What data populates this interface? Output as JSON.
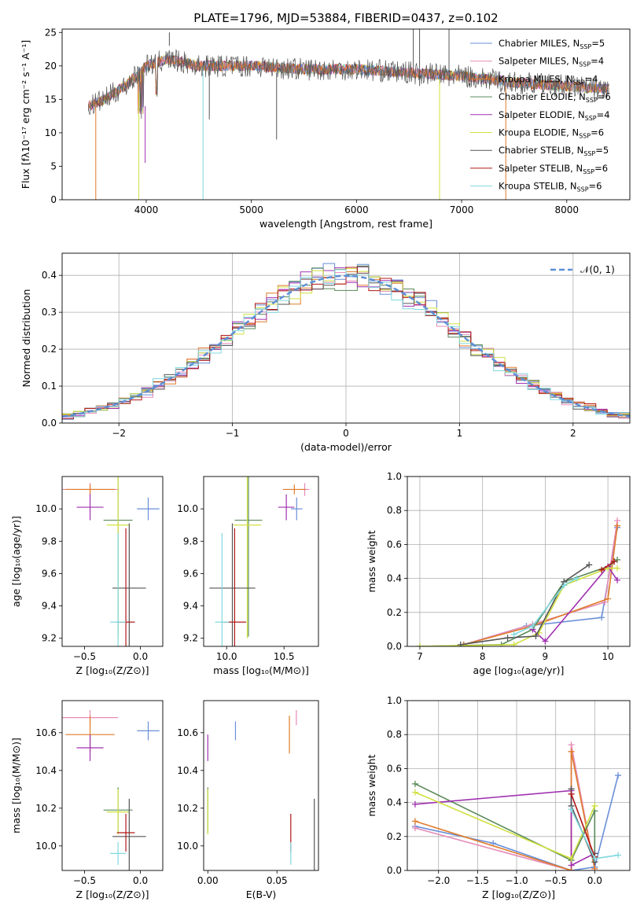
{
  "chart_data": [
    {
      "type": "line",
      "title": "PLATE=1796, MJD=53884, FIBERID=0437, z=0.102",
      "xlabel": "wavelength [Angstrom, rest frame]",
      "ylabel": "Flux [fλ10⁻¹⁷ erg cm⁻² s⁻¹ A⁻¹]",
      "xlim": [
        3200,
        8600
      ],
      "ylim": [
        0,
        25.5
      ],
      "xticks": [
        "4000",
        "5000",
        "6000",
        "7000",
        "8000"
      ],
      "yticks": [
        "0",
        "5",
        "10",
        "15",
        "20",
        "25"
      ],
      "legend_position": "top-right",
      "legend": [
        {
          "main": "Chabrier MILES, N",
          "sub": "SSP",
          "tail": "=5",
          "color": "#6a8fd8"
        },
        {
          "main": "Salpeter MILES, N",
          "sub": "SSP",
          "tail": "=4",
          "color": "#e58bb8"
        },
        {
          "main": "Kroupa MILES, N",
          "sub": "SSP",
          "tail": "=4",
          "color": "#e07b2a"
        },
        {
          "main": "Chabrier ELODIE, N",
          "sub": "SSP",
          "tail": "=6",
          "color": "#5a8a5a"
        },
        {
          "main": "Salpeter ELODIE, N",
          "sub": "SSP",
          "tail": "=4",
          "color": "#a030b0"
        },
        {
          "main": "Kroupa ELODIE, N",
          "sub": "SSP",
          "tail": "=6",
          "color": "#d0e040"
        },
        {
          "main": "Chabrier STELIB, N",
          "sub": "SSP",
          "tail": "=5",
          "color": "#555555"
        },
        {
          "main": "Salpeter STELIB, N",
          "sub": "SSP",
          "tail": "=6",
          "color": "#b01818"
        },
        {
          "main": "Kroupa STELIB, N",
          "sub": "SSP",
          "tail": "=6",
          "color": "#80d8e0"
        }
      ],
      "spectrum_envelope": {
        "wavelength": [
          3450,
          3600,
          3800,
          4000,
          4200,
          4500,
          5000,
          5500,
          6000,
          6500,
          7000,
          7500,
          8000,
          8400
        ],
        "flux": [
          14,
          15,
          17,
          20,
          21,
          20,
          20,
          19.5,
          19.5,
          19,
          18.5,
          17.5,
          17,
          16.5
        ]
      }
    },
    {
      "type": "step",
      "xlabel": "(data-model)/error",
      "ylabel": "Normed distribution",
      "xlim": [
        -2.5,
        2.5
      ],
      "ylim": [
        0,
        0.46
      ],
      "xticks": [
        "−2",
        "−1",
        "0",
        "1",
        "2"
      ],
      "yticks": [
        "0.0",
        "0.1",
        "0.2",
        "0.3",
        "0.4"
      ],
      "grid": true,
      "legend_position": "top-right",
      "legend": [
        {
          "label": "𝒩(0, 1)",
          "color": "#5b8fd6",
          "style": "dashed"
        }
      ],
      "histogram_density_approx": {
        "x": [
          -2.4,
          -2.2,
          -2.0,
          -1.8,
          -1.6,
          -1.4,
          -1.2,
          -1.0,
          -0.8,
          -0.6,
          -0.4,
          -0.2,
          0.0,
          0.2,
          0.4,
          0.6,
          0.8,
          1.0,
          1.2,
          1.4,
          1.6,
          1.8,
          2.0,
          2.2,
          2.4
        ],
        "density": [
          0.03,
          0.04,
          0.055,
          0.08,
          0.11,
          0.15,
          0.19,
          0.24,
          0.29,
          0.33,
          0.37,
          0.39,
          0.4,
          0.39,
          0.37,
          0.33,
          0.29,
          0.24,
          0.19,
          0.15,
          0.11,
          0.08,
          0.055,
          0.04,
          0.03
        ]
      }
    },
    {
      "type": "scatter",
      "xlabel": "Z [log₁₀(Z/Z⊙)]",
      "ylabel": "age  [log₁₀(age/yr)]",
      "xlim": [
        -0.7,
        0.2
      ],
      "ylim": [
        9.15,
        10.2
      ],
      "xticks": [
        "−0.5",
        "0.0"
      ],
      "yticks": [
        "9.2",
        "9.4",
        "9.6",
        "9.8",
        "10.0"
      ],
      "points": [
        {
          "x": 0.07,
          "y": 10.0,
          "xerr": 0.1,
          "yerr": 0.07,
          "color": "#6a8fd8"
        },
        {
          "x": -0.45,
          "y": 10.12,
          "xerr": 0.25,
          "yerr": 0.04,
          "color": "#e58bb8"
        },
        {
          "x": -0.45,
          "y": 10.12,
          "xerr": 0.22,
          "yerr": 0.03,
          "color": "#e07b2a"
        },
        {
          "x": -0.2,
          "y": 9.93,
          "xerr": 0.13,
          "yerr": 0.72,
          "color": "#5a8a5a"
        },
        {
          "x": -0.45,
          "y": 10.01,
          "xerr": 0.12,
          "yerr": 0.08,
          "color": "#a030b0"
        },
        {
          "x": -0.2,
          "y": 9.9,
          "xerr": 0.1,
          "yerr": 0.7,
          "color": "#d0e040"
        },
        {
          "x": -0.1,
          "y": 9.51,
          "xerr": 0.15,
          "yerr": 0.4,
          "color": "#555555"
        },
        {
          "x": -0.13,
          "y": 9.3,
          "xerr": 0.08,
          "yerr": 0.58,
          "color": "#b01818"
        },
        {
          "x": -0.2,
          "y": 9.3,
          "xerr": 0.07,
          "yerr": 0.55,
          "color": "#80d8e0"
        }
      ]
    },
    {
      "type": "scatter",
      "xlabel": "mass [log₁₀(M/M⊙)]",
      "ylabel": "",
      "xlim": [
        9.8,
        10.8
      ],
      "ylim": [
        9.15,
        10.2
      ],
      "xticks": [
        "10.0",
        "10.5"
      ],
      "yticks": [
        "9.2",
        "9.4",
        "9.6",
        "9.8",
        "10.0"
      ],
      "points": [
        {
          "x": 10.61,
          "y": 10.0,
          "xerr": 0.05,
          "yerr": 0.07,
          "color": "#6a8fd8"
        },
        {
          "x": 10.68,
          "y": 10.12,
          "xerr": 0.04,
          "yerr": 0.04,
          "color": "#e58bb8"
        },
        {
          "x": 10.59,
          "y": 10.12,
          "xerr": 0.1,
          "yerr": 0.03,
          "color": "#e07b2a"
        },
        {
          "x": 10.19,
          "y": 9.93,
          "xerr": 0.12,
          "yerr": 0.72,
          "color": "#5a8a5a"
        },
        {
          "x": 10.52,
          "y": 10.01,
          "xerr": 0.07,
          "yerr": 0.08,
          "color": "#a030b0"
        },
        {
          "x": 10.18,
          "y": 9.9,
          "xerr": 0.12,
          "yerr": 0.7,
          "color": "#d0e040"
        },
        {
          "x": 10.05,
          "y": 9.51,
          "xerr": 0.2,
          "yerr": 0.4,
          "color": "#555555"
        },
        {
          "x": 10.07,
          "y": 9.3,
          "xerr": 0.1,
          "yerr": 0.58,
          "color": "#b01818"
        },
        {
          "x": 9.96,
          "y": 9.3,
          "xerr": 0.06,
          "yerr": 0.55,
          "color": "#80d8e0"
        }
      ]
    },
    {
      "type": "line",
      "xlabel": "age  [log₁₀(age/yr)]",
      "ylabel": "mass weight",
      "xlim": [
        6.8,
        10.35
      ],
      "ylim": [
        0,
        1.0
      ],
      "xticks": [
        "7",
        "8",
        "9",
        "10"
      ],
      "yticks": [
        "0.0",
        "0.2",
        "0.4",
        "0.6",
        "0.8",
        "1.0"
      ],
      "grid": true,
      "series": [
        {
          "color": "#6a8fd8",
          "x": [
            7.7,
            8.7,
            9.9,
            10.15
          ],
          "y": [
            0.01,
            0.12,
            0.17,
            0.7
          ]
        },
        {
          "color": "#e58bb8",
          "x": [
            7.7,
            8.8,
            9.95,
            10.15
          ],
          "y": [
            0.01,
            0.13,
            0.26,
            0.74
          ]
        },
        {
          "color": "#e07b2a",
          "x": [
            7.7,
            8.8,
            10.0,
            10.15
          ],
          "y": [
            0.01,
            0.12,
            0.28,
            0.71
          ]
        },
        {
          "color": "#5a8a5a",
          "x": [
            7.0,
            8.3,
            8.8,
            9.3,
            10.0,
            10.15
          ],
          "y": [
            0.0,
            0.01,
            0.1,
            0.38,
            0.47,
            0.51
          ]
        },
        {
          "color": "#a030b0",
          "x": [
            8.8,
            9.0,
            10.0,
            10.15
          ],
          "y": [
            0.1,
            0.03,
            0.47,
            0.39
          ]
        },
        {
          "color": "#d0e040",
          "x": [
            7.0,
            8.5,
            8.9,
            9.3,
            10.0,
            10.15
          ],
          "y": [
            0.0,
            0.01,
            0.08,
            0.36,
            0.46,
            0.46
          ]
        },
        {
          "color": "#555555",
          "x": [
            7.65,
            8.4,
            8.85,
            9.3,
            9.7
          ],
          "y": [
            0.01,
            0.05,
            0.06,
            0.38,
            0.48
          ]
        },
        {
          "color": "#b01818",
          "x": [
            9.9,
            10.1
          ],
          "y": [
            0.45,
            0.5
          ]
        },
        {
          "color": "#80d8e0",
          "x": [
            8.5,
            8.8,
            9.3,
            9.5
          ],
          "y": [
            0.07,
            0.12,
            0.36,
            0.4
          ]
        }
      ]
    },
    {
      "type": "scatter",
      "xlabel": "Z [log₁₀(Z/Z⊙)]",
      "ylabel": "mass [log₁₀(M/M⊙)]",
      "xlim": [
        -0.7,
        0.2
      ],
      "ylim": [
        9.87,
        10.77
      ],
      "xticks": [
        "−0.5",
        "0.0"
      ],
      "yticks": [
        "10.0",
        "10.2",
        "10.4",
        "10.6"
      ],
      "points": [
        {
          "x": 0.07,
          "y": 10.61,
          "xerr": 0.1,
          "yerr": 0.05,
          "color": "#6a8fd8"
        },
        {
          "x": -0.45,
          "y": 10.68,
          "xerr": 0.25,
          "yerr": 0.04,
          "color": "#e58bb8"
        },
        {
          "x": -0.45,
          "y": 10.59,
          "xerr": 0.22,
          "yerr": 0.1,
          "color": "#e07b2a"
        },
        {
          "x": -0.2,
          "y": 10.19,
          "xerr": 0.13,
          "yerr": 0.12,
          "color": "#5a8a5a"
        },
        {
          "x": -0.45,
          "y": 10.52,
          "xerr": 0.12,
          "yerr": 0.07,
          "color": "#a030b0"
        },
        {
          "x": -0.2,
          "y": 10.18,
          "xerr": 0.1,
          "yerr": 0.12,
          "color": "#d0e040"
        },
        {
          "x": -0.1,
          "y": 10.05,
          "xerr": 0.15,
          "yerr": 0.2,
          "color": "#555555"
        },
        {
          "x": -0.13,
          "y": 10.07,
          "xerr": 0.08,
          "yerr": 0.1,
          "color": "#b01818"
        },
        {
          "x": -0.2,
          "y": 9.96,
          "xerr": 0.07,
          "yerr": 0.06,
          "color": "#80d8e0"
        }
      ]
    },
    {
      "type": "scatter",
      "xlabel": "E(B-V)",
      "ylabel": "",
      "xlim": [
        -0.003,
        0.08
      ],
      "ylim": [
        9.87,
        10.77
      ],
      "xticks": [
        "0.00",
        "0.05"
      ],
      "yticks": [
        "10.0",
        "10.2",
        "10.4",
        "10.6"
      ],
      "points": [
        {
          "x": 0.02,
          "y": 10.61,
          "xerr": 0,
          "yerr": 0.05,
          "color": "#6a8fd8"
        },
        {
          "x": 0.064,
          "y": 10.68,
          "xerr": 0,
          "yerr": 0.04,
          "color": "#e58bb8"
        },
        {
          "x": 0.059,
          "y": 10.59,
          "xerr": 0,
          "yerr": 0.1,
          "color": "#e07b2a"
        },
        {
          "x": 0.0,
          "y": 10.19,
          "xerr": 0,
          "yerr": 0.12,
          "color": "#5a8a5a"
        },
        {
          "x": 0.0,
          "y": 10.52,
          "xerr": 0,
          "yerr": 0.07,
          "color": "#a030b0"
        },
        {
          "x": 0.0,
          "y": 10.18,
          "xerr": 0,
          "yerr": 0.12,
          "color": "#d0e040"
        },
        {
          "x": 0.077,
          "y": 10.05,
          "xerr": 0,
          "yerr": 0.2,
          "color": "#555555"
        },
        {
          "x": 0.06,
          "y": 10.07,
          "xerr": 0,
          "yerr": 0.1,
          "color": "#b01818"
        },
        {
          "x": 0.06,
          "y": 9.96,
          "xerr": 0,
          "yerr": 0.06,
          "color": "#80d8e0"
        }
      ]
    },
    {
      "type": "line",
      "xlabel": "Z [log₁₀(Z/Z⊙)]",
      "ylabel": "mass weight",
      "xlim": [
        -2.4,
        0.45
      ],
      "ylim": [
        0,
        1.0
      ],
      "xticks": [
        "−2.0",
        "−1.5",
        "−1.0",
        "−0.5",
        "0.0"
      ],
      "yticks": [
        "0.0",
        "0.2",
        "0.4",
        "0.6",
        "0.8",
        "1.0"
      ],
      "grid": true,
      "series": [
        {
          "color": "#6a8fd8",
          "x": [
            -2.3,
            -1.3,
            -0.3,
            0.0,
            0.3
          ],
          "y": [
            0.26,
            0.16,
            0.0,
            0.02,
            0.56
          ]
        },
        {
          "color": "#e58bb8",
          "x": [
            -2.3,
            -0.3,
            -0.3,
            0.0
          ],
          "y": [
            0.25,
            0.0,
            0.74,
            0.01
          ]
        },
        {
          "color": "#e07b2a",
          "x": [
            -2.3,
            -0.3,
            -0.3,
            0.0
          ],
          "y": [
            0.29,
            0.0,
            0.7,
            0.01
          ]
        },
        {
          "color": "#5a8a5a",
          "x": [
            -2.3,
            -0.3,
            0.0,
            0.0
          ],
          "y": [
            0.51,
            0.06,
            0.35,
            0.08
          ]
        },
        {
          "color": "#a030b0",
          "x": [
            -2.3,
            -0.3,
            -0.3,
            0.0
          ],
          "y": [
            0.39,
            0.47,
            0.03,
            0.1
          ]
        },
        {
          "color": "#d0e040",
          "x": [
            -2.3,
            -0.3,
            0.0
          ],
          "y": [
            0.46,
            0.07,
            0.38
          ]
        },
        {
          "color": "#555555",
          "x": [
            -0.3,
            -0.3,
            0.0,
            0.0
          ],
          "y": [
            0.48,
            0.38,
            0.05,
            0.1
          ]
        },
        {
          "color": "#b01818",
          "x": [
            -0.3,
            0.0
          ],
          "y": [
            0.45,
            0.08
          ]
        },
        {
          "color": "#80d8e0",
          "x": [
            -0.3,
            0.0,
            0.3
          ],
          "y": [
            0.36,
            0.07,
            0.09
          ]
        }
      ]
    }
  ]
}
